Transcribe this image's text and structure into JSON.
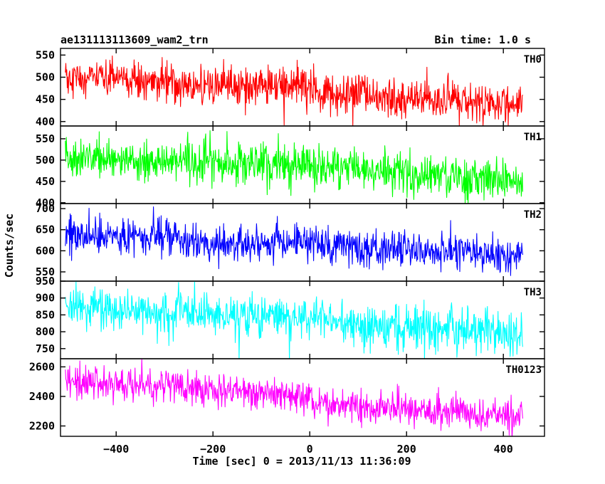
{
  "header": {
    "left_title": "ae131113113609_wam2_trn",
    "right_title": "Bin time: 1.0 s"
  },
  "axes": {
    "ylabel": "Counts/sec",
    "xlabel": "Time [sec] 0 = 2013/11/13 11:36:09"
  },
  "chart_data": {
    "type": "line",
    "title": "ae131113113609_wam2_trn",
    "subtitle": "Bin time: 1.0 s",
    "xlabel": "Time [sec] 0 = 2013/11/13 11:36:09",
    "ylabel": "Counts/sec",
    "xlim": [
      -515,
      485
    ],
    "x_ticks": [
      -400,
      -200,
      0,
      200,
      400
    ],
    "x_sampling": {
      "start": -505,
      "end": 440,
      "step": 1
    },
    "grid": false,
    "legend": "none",
    "panels": [
      {
        "label": "TH0",
        "color": "#ff0000",
        "ylim": [
          390,
          565
        ],
        "yticks": [
          400,
          450,
          500,
          550
        ],
        "profile": [
          [
            -505,
            500
          ],
          [
            -300,
            487
          ],
          [
            -100,
            478
          ],
          [
            -5,
            482
          ],
          [
            0,
            490
          ],
          [
            5,
            462
          ],
          [
            440,
            440
          ]
        ],
        "noise_sd": 22
      },
      {
        "label": "TH1",
        "color": "#00ff00",
        "ylim": [
          398,
          580
        ],
        "yticks": [
          400,
          450,
          500,
          550
        ],
        "profile": [
          [
            -505,
            505
          ],
          [
            0,
            485
          ],
          [
            440,
            455
          ]
        ],
        "noise_sd": 24
      },
      {
        "label": "TH2",
        "color": "#0000ff",
        "ylim": [
          528,
          712
        ],
        "yticks": [
          550,
          600,
          650,
          700
        ],
        "profile": [
          [
            -505,
            640
          ],
          [
            -260,
            635
          ],
          [
            -255,
            612
          ],
          [
            0,
            622
          ],
          [
            5,
            615
          ],
          [
            440,
            590
          ]
        ],
        "noise_sd": 22
      },
      {
        "label": "TH3",
        "color": "#00ffff",
        "ylim": [
          720,
          950
        ],
        "yticks": [
          750,
          800,
          850,
          900,
          950
        ],
        "profile": [
          [
            -505,
            870
          ],
          [
            0,
            840
          ],
          [
            440,
            790
          ]
        ],
        "noise_sd": 32
      },
      {
        "label": "TH0123",
        "color": "#ff00ff",
        "ylim": [
          2130,
          2655
        ],
        "yticks": [
          2200,
          2400,
          2600
        ],
        "profile": [
          [
            -505,
            2510
          ],
          [
            -5,
            2405
          ],
          [
            0,
            2460
          ],
          [
            5,
            2345
          ],
          [
            440,
            2270
          ]
        ],
        "noise_sd": 55
      }
    ]
  }
}
